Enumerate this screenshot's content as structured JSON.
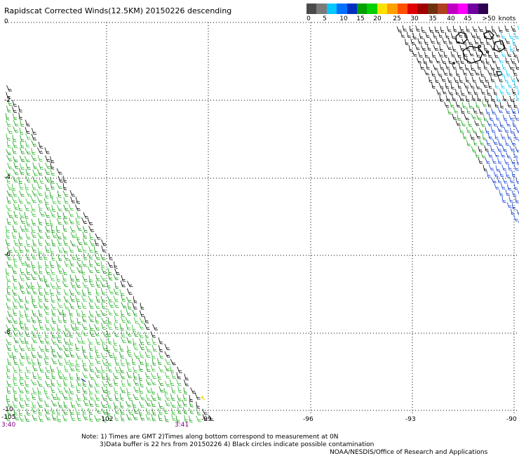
{
  "title": "Rapidscat Corrected Winds(12.5KM) 20150226 descending",
  "legend": {
    "colors": [
      "#4a4a4a",
      "#7a7a7a",
      "#00c8ff",
      "#0070ff",
      "#0030c0",
      "#00a000",
      "#00d000",
      "#ffe000",
      "#ffa000",
      "#ff5000",
      "#e00000",
      "#a00000",
      "#703010",
      "#b04020",
      "#c000c0",
      "#ff00ff",
      "#7000a0",
      "#300050"
    ],
    "labels": [
      "0",
      "5",
      "10",
      "15",
      "20",
      "25",
      "30",
      "35",
      "40",
      "45",
      ">50"
    ],
    "units": "knots"
  },
  "axes": {
    "lat_labels": [
      "0",
      "-2",
      "-4",
      "-6",
      "-8",
      "-10"
    ],
    "lon_labels": [
      "-105",
      "-102",
      "-99",
      "-96",
      "-93",
      "-90"
    ]
  },
  "times": {
    "left": "3:40",
    "mid": "3:41"
  },
  "notes": {
    "line1": "Note: 1) Times are GMT 2)Times along bottom correspond to measurement at 0N",
    "line2": "3)Data buffer is 22 hrs from 20150226 4) Black circles indicate possible contamination",
    "credit": "NOAA/NESDIS/Office of Research and Applications"
  }
}
